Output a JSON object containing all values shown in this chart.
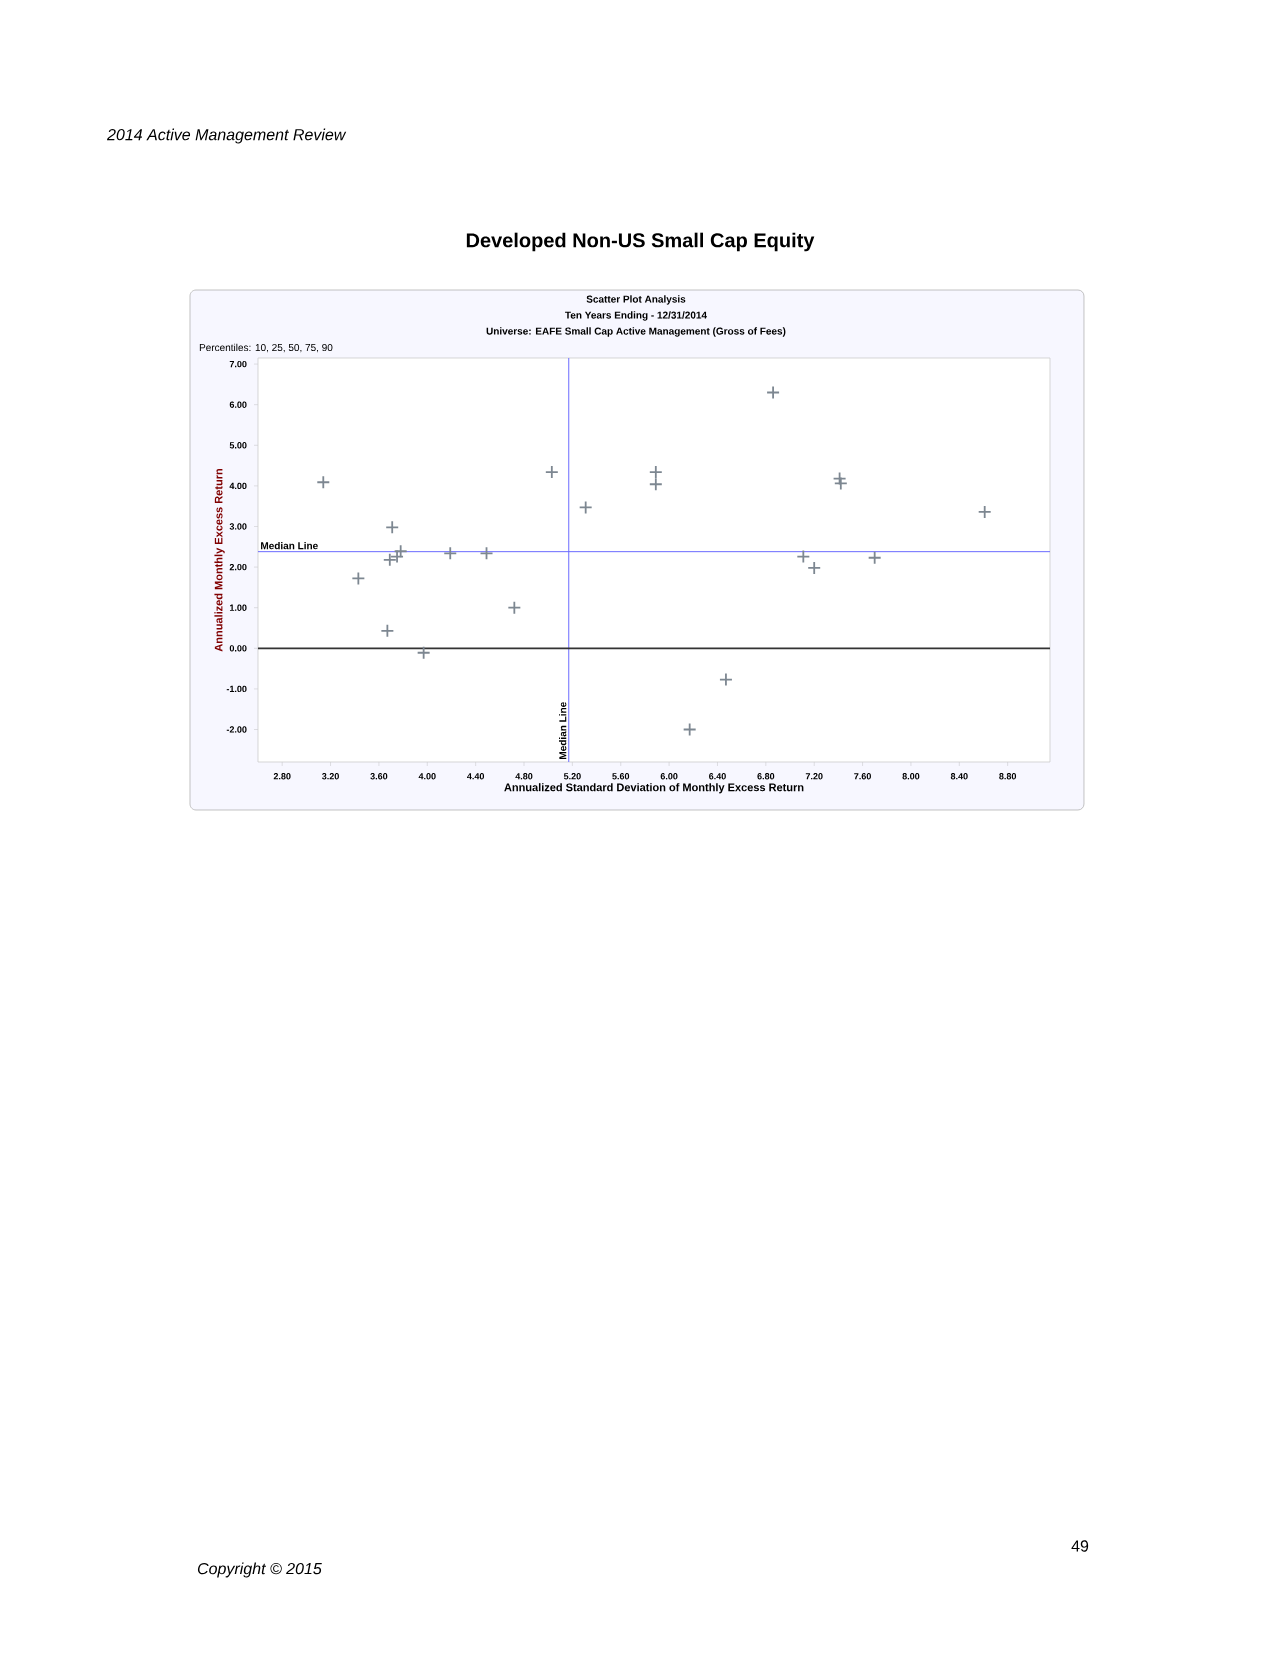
{
  "chart_data": {
    "type": "scatter",
    "title": "Developed Non-US Small Cap Equity",
    "subtitle": "Scatter Plot Analysis",
    "annotations": [
      "2014 Active Management Review",
      "Ten Years Ending - 12/31/2014",
      "Universe: EAFE Small Cap Active Management (Gross of Fees)",
      "Percentiles: 10, 25, 50, 75, 90",
      "Copyright © 2015",
      "49"
    ],
    "xlabel": "Annualized Standard Deviation of Monthly Excess Return",
    "ylabel": "Annualized Monthly Excess Return",
    "x": [
      3.14,
      3.43,
      3.67,
      3.69,
      3.71,
      3.75,
      3.78,
      3.97,
      4.19,
      4.49,
      4.72,
      5.03,
      5.31,
      5.89,
      5.89,
      6.17,
      6.47,
      6.86,
      7.11,
      7.2,
      7.41,
      7.42,
      7.7,
      8.61
    ],
    "values": [
      4.09,
      1.72,
      0.43,
      2.18,
      2.98,
      2.26,
      2.39,
      -0.11,
      2.34,
      2.34,
      1.0,
      4.34,
      3.47,
      4.34,
      4.04,
      -2.0,
      -0.77,
      6.3,
      2.26,
      1.98,
      4.18,
      4.06,
      2.23,
      3.36
    ],
    "color": "#7d8791",
    "marker": "cross",
    "xlim": [
      2.6,
      9.15
    ],
    "ylim": [
      -2.8,
      7.15
    ],
    "xticks": [
      {
        "value": 2.8,
        "label": "2.80"
      },
      {
        "value": 3.2,
        "label": "3.20"
      },
      {
        "value": 3.6,
        "label": "3.60"
      },
      {
        "value": 4.0,
        "label": "4.00"
      },
      {
        "value": 4.4,
        "label": "4.40"
      },
      {
        "value": 4.8,
        "label": "4.80"
      },
      {
        "value": 5.2,
        "label": "5.20"
      },
      {
        "value": 5.6,
        "label": "5.60"
      },
      {
        "value": 6.0,
        "label": "6.00"
      },
      {
        "value": 6.4,
        "label": "6.40"
      },
      {
        "value": 6.8,
        "label": "6.80"
      },
      {
        "value": 7.2,
        "label": "7.20"
      },
      {
        "value": 7.6,
        "label": "7.60"
      },
      {
        "value": 8.0,
        "label": "8.00"
      },
      {
        "value": 8.4,
        "label": "8.40"
      },
      {
        "value": 8.8,
        "label": "8.80"
      }
    ],
    "yticks": [
      {
        "value": -2,
        "label": "-2.00"
      },
      {
        "value": -1,
        "label": "-1.00"
      },
      {
        "value": 0,
        "label": "0.00"
      },
      {
        "value": 1,
        "label": "1.00"
      },
      {
        "value": 2,
        "label": "2.00"
      },
      {
        "value": 3,
        "label": "3.00"
      },
      {
        "value": 4,
        "label": "4.00"
      },
      {
        "value": 5,
        "label": "5.00"
      },
      {
        "value": 6,
        "label": "6.00"
      },
      {
        "value": 7,
        "label": "7.00"
      }
    ],
    "ref_lines": [
      {
        "axis": "y",
        "value": 2.38,
        "label": "Median Line",
        "color": "#6a6aff"
      },
      {
        "axis": "x",
        "value": 5.17,
        "label": "Median Line",
        "color": "#6a6aff"
      },
      {
        "axis": "y",
        "value": 0,
        "color": "#333333"
      }
    ]
  }
}
